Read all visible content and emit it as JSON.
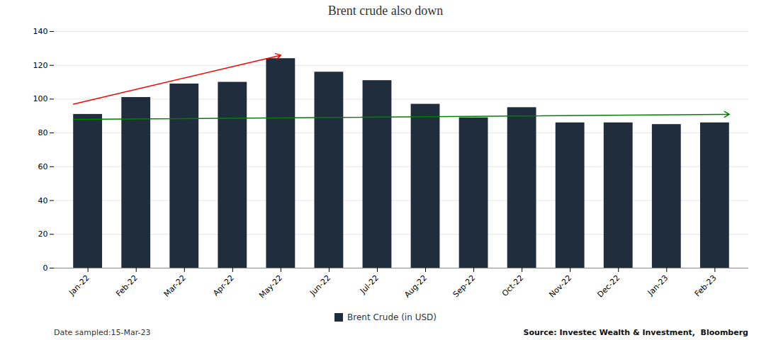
{
  "chart_data": {
    "type": "bar",
    "title": "Brent crude also down",
    "categories": [
      "Jan-22",
      "Feb-22",
      "Mar-22",
      "Apr-22",
      "May-22",
      "Jun-22",
      "Jul-22",
      "Aug-22",
      "Sep-22",
      "Oct-22",
      "Nov-22",
      "Dec-22",
      "Jan-23",
      "Feb-23"
    ],
    "series": [
      {
        "name": "Brent Crude (in USD)",
        "color": "#1f2d3d",
        "values": [
          91,
          101,
          109,
          110,
          124,
          116,
          111,
          97,
          89,
          95,
          86,
          86,
          85,
          86
        ]
      }
    ],
    "ylim": [
      0,
      140
    ],
    "yticks": [
      0,
      20,
      40,
      60,
      80,
      100,
      120,
      140
    ],
    "grid": true,
    "legend": "bottom",
    "annotations": [
      {
        "type": "arrow",
        "color": "red",
        "x1": -0.3,
        "y1": 97,
        "x2": 4.0,
        "y2": 126
      },
      {
        "type": "arrow",
        "color": "green",
        "x1": -0.3,
        "y1": 88,
        "x2": 13.3,
        "y2": 91
      }
    ],
    "footnotes": [
      "Date sampled:15-Mar-23",
      "Source: Investec Wealth & Investment,  Bloomberg"
    ]
  }
}
